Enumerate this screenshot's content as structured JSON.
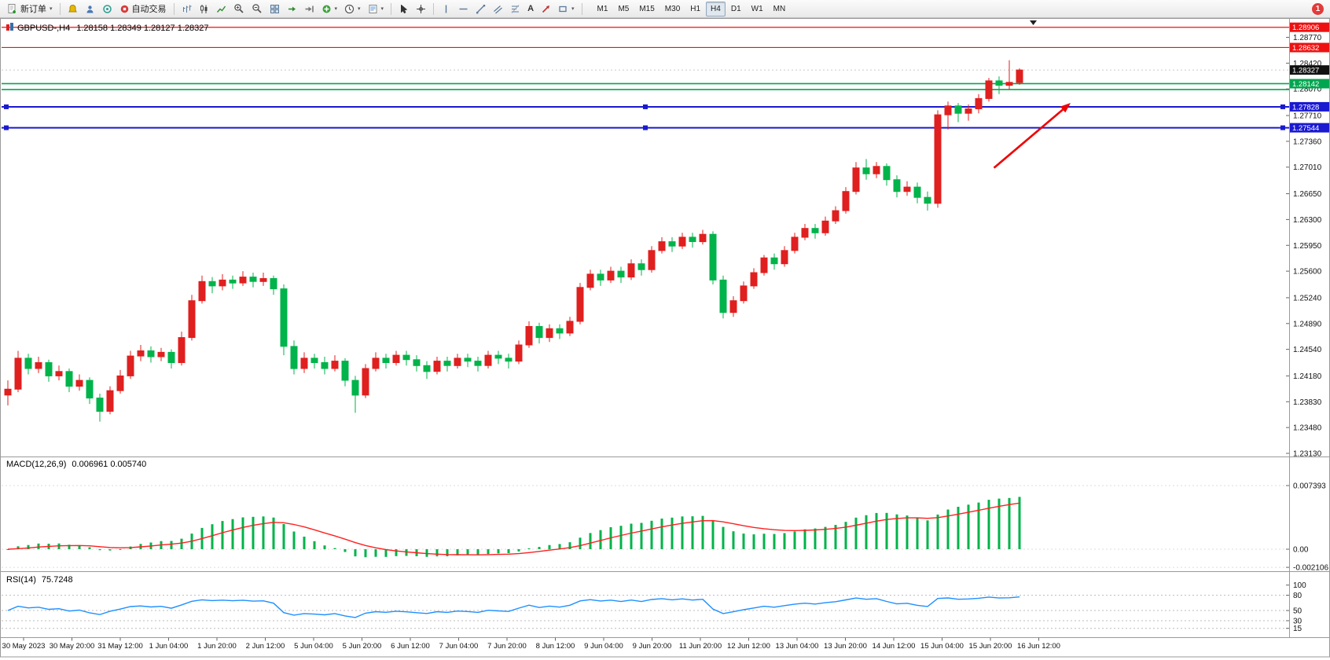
{
  "toolbar": {
    "new_order_label": "新订单",
    "auto_trading_label": "自动交易",
    "text_tool_label": "A",
    "timeframes": [
      "M1",
      "M5",
      "M15",
      "M30",
      "H1",
      "H4",
      "D1",
      "W1",
      "MN"
    ],
    "active_timeframe": "H4",
    "notification_count": "1"
  },
  "chart_data": {
    "type": "candlestick",
    "symbol_period": "GBPUSD-,H4",
    "ohlc_text": "1.28158 1.28349 1.28127 1.28327",
    "current_price": 1.28327,
    "colors": {
      "up": "#e01f1f",
      "down": "#00b34a",
      "background": "#ffffff"
    },
    "price_axis": {
      "top_price": 1.2877,
      "bottom_price": 1.2313,
      "labels": [
        "1.28770",
        "1.28420",
        "1.28070",
        "1.27710",
        "1.27360",
        "1.27010",
        "1.26650",
        "1.26300",
        "1.25950",
        "1.25600",
        "1.25240",
        "1.24890",
        "1.24540",
        "1.24180",
        "1.23830",
        "1.23480",
        "1.23130"
      ],
      "current_label": "1.28327"
    },
    "hlines": [
      {
        "price": 1.28906,
        "label": "1.28906",
        "color": "#ee1111",
        "width": 1.2,
        "boxed": true,
        "selected": false
      },
      {
        "price": 1.28632,
        "label": "1.28632",
        "color": "#ee1111",
        "width": 1.2,
        "boxed": true,
        "selected": false
      },
      {
        "price": 1.28142,
        "label": "1.28142",
        "color": "#00a650",
        "width": 1.6,
        "boxed": true,
        "selected": false
      },
      {
        "price": 1.28062,
        "label": "",
        "color": "#00a650",
        "width": 1.6,
        "boxed": false,
        "selected": false
      },
      {
        "price": 1.27828,
        "label": "1.27828",
        "color": "#1a1ad0",
        "width": 2,
        "boxed": true,
        "selected": true
      },
      {
        "price": 1.27544,
        "label": "1.27544",
        "color": "#1a1ad0",
        "width": 2,
        "boxed": true,
        "selected": true
      }
    ],
    "time_labels": [
      "30 May 2023",
      "30 May 20:00",
      "31 May 12:00",
      "1 Jun 04:00",
      "1 Jun 20:00",
      "2 Jun 12:00",
      "5 Jun 04:00",
      "5 Jun 20:00",
      "6 Jun 12:00",
      "7 Jun 04:00",
      "7 Jun 20:00",
      "8 Jun 12:00",
      "9 Jun 04:00",
      "9 Jun 20:00",
      "11 Jun 20:00",
      "12 Jun 12:00",
      "13 Jun 04:00",
      "13 Jun 20:00",
      "14 Jun 12:00",
      "15 Jun 04:00",
      "15 Jun 20:00",
      "16 Jun 12:00"
    ],
    "candles": [
      [
        1.2392,
        1.2412,
        1.2378,
        1.24
      ],
      [
        1.24,
        1.2452,
        1.2396,
        1.2442
      ],
      [
        1.2442,
        1.2448,
        1.242,
        1.2428
      ],
      [
        1.2428,
        1.2444,
        1.2422,
        1.2436
      ],
      [
        1.2436,
        1.244,
        1.241,
        1.2418
      ],
      [
        1.2418,
        1.2432,
        1.2412,
        1.2424
      ],
      [
        1.2424,
        1.2428,
        1.2396,
        1.2404
      ],
      [
        1.2404,
        1.242,
        1.2398,
        1.2412
      ],
      [
        1.2412,
        1.2416,
        1.238,
        1.2388
      ],
      [
        1.2388,
        1.2394,
        1.2356,
        1.237
      ],
      [
        1.237,
        1.2404,
        1.2366,
        1.2398
      ],
      [
        1.2398,
        1.2426,
        1.2394,
        1.2418
      ],
      [
        1.2418,
        1.2452,
        1.2414,
        1.2445
      ],
      [
        1.2445,
        1.246,
        1.2438,
        1.2452
      ],
      [
        1.2452,
        1.2458,
        1.2436,
        1.2444
      ],
      [
        1.2444,
        1.2456,
        1.2438,
        1.245
      ],
      [
        1.245,
        1.2454,
        1.2428,
        1.2436
      ],
      [
        1.2436,
        1.2478,
        1.2432,
        1.247
      ],
      [
        1.247,
        1.2528,
        1.2466,
        1.252
      ],
      [
        1.252,
        1.2554,
        1.2516,
        1.2546
      ],
      [
        1.2546,
        1.2552,
        1.253,
        1.254
      ],
      [
        1.254,
        1.2556,
        1.2534,
        1.2548
      ],
      [
        1.2548,
        1.2554,
        1.2536,
        1.2544
      ],
      [
        1.2544,
        1.256,
        1.254,
        1.2552
      ],
      [
        1.2552,
        1.2558,
        1.2538,
        1.2546
      ],
      [
        1.2546,
        1.2558,
        1.254,
        1.255
      ],
      [
        1.255,
        1.2554,
        1.2528,
        1.2536
      ],
      [
        1.2536,
        1.2542,
        1.2446,
        1.2458
      ],
      [
        1.2458,
        1.2466,
        1.242,
        1.2428
      ],
      [
        1.2428,
        1.245,
        1.2422,
        1.2442
      ],
      [
        1.2442,
        1.2448,
        1.2428,
        1.2436
      ],
      [
        1.2436,
        1.2444,
        1.242,
        1.2428
      ],
      [
        1.2428,
        1.2446,
        1.2424,
        1.2438
      ],
      [
        1.2438,
        1.2442,
        1.2404,
        1.2412
      ],
      [
        1.2412,
        1.2418,
        1.2368,
        1.2392
      ],
      [
        1.2392,
        1.2434,
        1.2388,
        1.2428
      ],
      [
        1.2428,
        1.245,
        1.2424,
        1.2442
      ],
      [
        1.2442,
        1.2448,
        1.2428,
        1.2436
      ],
      [
        1.2436,
        1.2452,
        1.2432,
        1.2446
      ],
      [
        1.2446,
        1.2452,
        1.2432,
        1.244
      ],
      [
        1.244,
        1.2446,
        1.2424,
        1.2432
      ],
      [
        1.2432,
        1.2438,
        1.2414,
        1.2424
      ],
      [
        1.2424,
        1.2444,
        1.242,
        1.2438
      ],
      [
        1.2438,
        1.2444,
        1.2424,
        1.2432
      ],
      [
        1.2432,
        1.2448,
        1.2428,
        1.2442
      ],
      [
        1.2442,
        1.2448,
        1.243,
        1.2438
      ],
      [
        1.2438,
        1.2444,
        1.2424,
        1.2432
      ],
      [
        1.2432,
        1.2452,
        1.2428,
        1.2446
      ],
      [
        1.2446,
        1.2452,
        1.2434,
        1.2442
      ],
      [
        1.2442,
        1.2448,
        1.2428,
        1.2438
      ],
      [
        1.2438,
        1.2466,
        1.2434,
        1.246
      ],
      [
        1.246,
        1.2492,
        1.2456,
        1.2485
      ],
      [
        1.2485,
        1.249,
        1.2462,
        1.247
      ],
      [
        1.247,
        1.2488,
        1.2464,
        1.2482
      ],
      [
        1.2482,
        1.2488,
        1.2468,
        1.2476
      ],
      [
        1.2476,
        1.2498,
        1.2472,
        1.2492
      ],
      [
        1.2492,
        1.2544,
        1.2488,
        1.2538
      ],
      [
        1.2538,
        1.2562,
        1.2534,
        1.2556
      ],
      [
        1.2556,
        1.2562,
        1.254,
        1.2548
      ],
      [
        1.2548,
        1.2566,
        1.2544,
        1.256
      ],
      [
        1.256,
        1.2566,
        1.2544,
        1.2552
      ],
      [
        1.2552,
        1.2576,
        1.2548,
        1.257
      ],
      [
        1.257,
        1.2576,
        1.2554,
        1.2562
      ],
      [
        1.2562,
        1.2594,
        1.2558,
        1.2588
      ],
      [
        1.2588,
        1.2606,
        1.2584,
        1.26
      ],
      [
        1.26,
        1.2606,
        1.2586,
        1.2594
      ],
      [
        1.2594,
        1.2612,
        1.259,
        1.2606
      ],
      [
        1.2606,
        1.2612,
        1.2592,
        1.26
      ],
      [
        1.26,
        1.2616,
        1.2596,
        1.261
      ],
      [
        1.261,
        1.2614,
        1.2542,
        1.2548
      ],
      [
        1.2548,
        1.2554,
        1.2496,
        1.2504
      ],
      [
        1.2504,
        1.2526,
        1.2498,
        1.252
      ],
      [
        1.252,
        1.2546,
        1.2516,
        1.254
      ],
      [
        1.254,
        1.2564,
        1.2536,
        1.2558
      ],
      [
        1.2558,
        1.2582,
        1.2554,
        1.2578
      ],
      [
        1.2578,
        1.2584,
        1.2562,
        1.257
      ],
      [
        1.257,
        1.2594,
        1.2566,
        1.2588
      ],
      [
        1.2588,
        1.2612,
        1.2584,
        1.2606
      ],
      [
        1.2606,
        1.2624,
        1.2602,
        1.2618
      ],
      [
        1.2618,
        1.2624,
        1.2604,
        1.2612
      ],
      [
        1.2612,
        1.2634,
        1.2608,
        1.2628
      ],
      [
        1.2628,
        1.2648,
        1.2624,
        1.2642
      ],
      [
        1.2642,
        1.2674,
        1.2638,
        1.2668
      ],
      [
        1.2668,
        1.2708,
        1.2664,
        1.27
      ],
      [
        1.27,
        1.2712,
        1.2684,
        1.2692
      ],
      [
        1.2692,
        1.2708,
        1.2686,
        1.2702
      ],
      [
        1.2702,
        1.2706,
        1.2676,
        1.2684
      ],
      [
        1.2684,
        1.269,
        1.266,
        1.2668
      ],
      [
        1.2668,
        1.2682,
        1.2662,
        1.2674
      ],
      [
        1.2674,
        1.268,
        1.2652,
        1.266
      ],
      [
        1.266,
        1.2668,
        1.2642,
        1.2652
      ],
      [
        1.2652,
        1.2778,
        1.2646,
        1.2772
      ],
      [
        1.2772,
        1.279,
        1.2752,
        1.2784
      ],
      [
        1.2784,
        1.2788,
        1.2762,
        1.2774
      ],
      [
        1.2774,
        1.2786,
        1.2764,
        1.278
      ],
      [
        1.278,
        1.28,
        1.2774,
        1.2794
      ],
      [
        1.2794,
        1.2822,
        1.279,
        1.2818
      ],
      [
        1.2818,
        1.2824,
        1.28,
        1.2812
      ],
      [
        1.2812,
        1.2846,
        1.2806,
        1.2816
      ],
      [
        1.28158,
        1.28349,
        1.28127,
        1.28327
      ]
    ],
    "macd": {
      "title": "MACD(12,26,9)",
      "values_text": "0.006961 0.005740",
      "fast": 12,
      "slow": 26,
      "signal_period": 9,
      "histogram_color": "#00b34a",
      "signal_color": "#ff2020",
      "scale": [
        {
          "label": "0.007393",
          "value": 0.007393
        },
        {
          "label": "0.00",
          "value": 0
        },
        {
          "label": "-0.002106",
          "value": -0.002106
        }
      ]
    },
    "rsi": {
      "title": "RSI(14)",
      "value_text": "75.7248",
      "period": 14,
      "line_color": "#1e90ff",
      "levels": [
        80,
        50,
        30,
        15
      ],
      "scale": [
        {
          "label": "100",
          "value": 100
        },
        {
          "label": "80",
          "value": 80
        },
        {
          "label": "50",
          "value": 50
        },
        {
          "label": "30",
          "value": 30
        },
        {
          "label": "15",
          "value": 15
        }
      ]
    },
    "annotations": {
      "arrow": {
        "from_bar": 96.5,
        "from_price": 1.27,
        "to_bar": 104,
        "to_price": 1.2788,
        "color": "#f00000"
      }
    }
  }
}
